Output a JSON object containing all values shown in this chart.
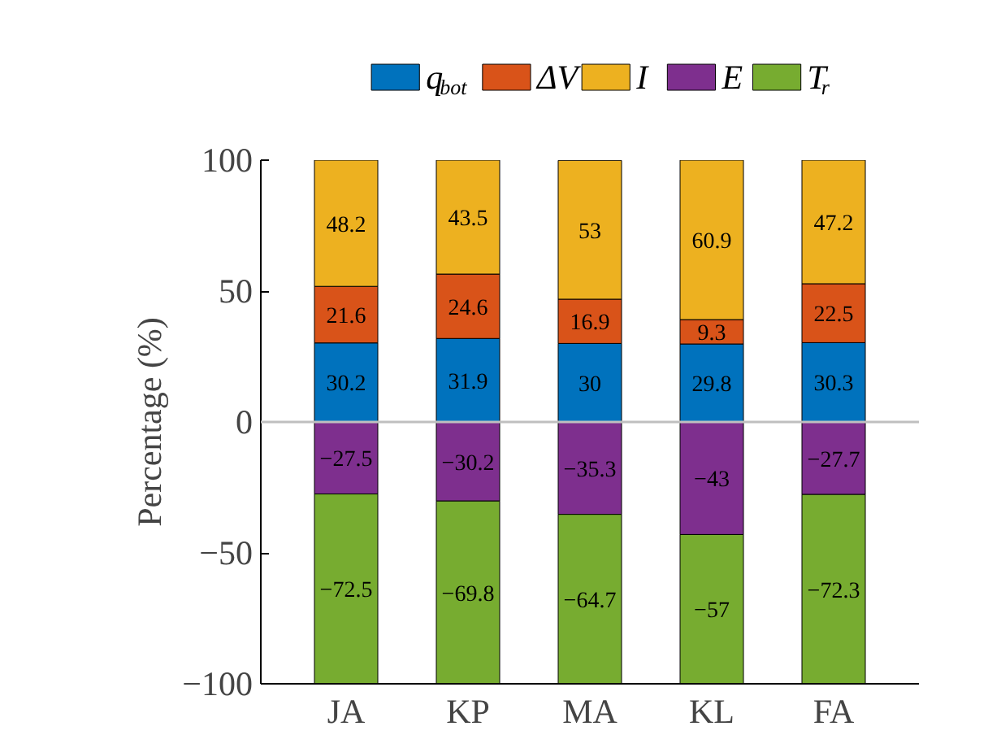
{
  "chart_data": {
    "type": "bar",
    "stacked": true,
    "categories": [
      "JA",
      "KP",
      "MA",
      "KL",
      "FA"
    ],
    "ylabel": "Percentage (%)",
    "series": [
      {
        "name": "q$_{bot}$",
        "color": "#0072bd",
        "values": [
          30.2,
          31.9,
          30,
          29.8,
          30.3
        ]
      },
      {
        "name": "ΔV",
        "color": "#d95319",
        "values": [
          21.6,
          24.6,
          16.9,
          9.3,
          22.5
        ]
      },
      {
        "name": "I",
        "color": "#edb120",
        "values": [
          48.2,
          43.5,
          53,
          60.9,
          47.2
        ]
      },
      {
        "name": "E",
        "color": "#7e2f8e",
        "values": [
          -27.5,
          -30.2,
          -35.3,
          -43,
          -27.7
        ]
      },
      {
        "name": "T$_{r}$",
        "color": "#77ac30",
        "values": [
          -72.5,
          -69.8,
          -64.7,
          -57,
          -72.3
        ]
      }
    ],
    "ylim": [
      -100,
      100
    ],
    "yticks": [
      {
        "value": -100,
        "label": "−100"
      },
      {
        "value": -50,
        "label": "−50"
      },
      0,
      50,
      100
    ],
    "ref_lines": [
      {
        "axis": "y",
        "value": 0,
        "label": null,
        "color": "#bfbfbf"
      }
    ],
    "data_labels": true,
    "legend": "top",
    "grid": false
  }
}
